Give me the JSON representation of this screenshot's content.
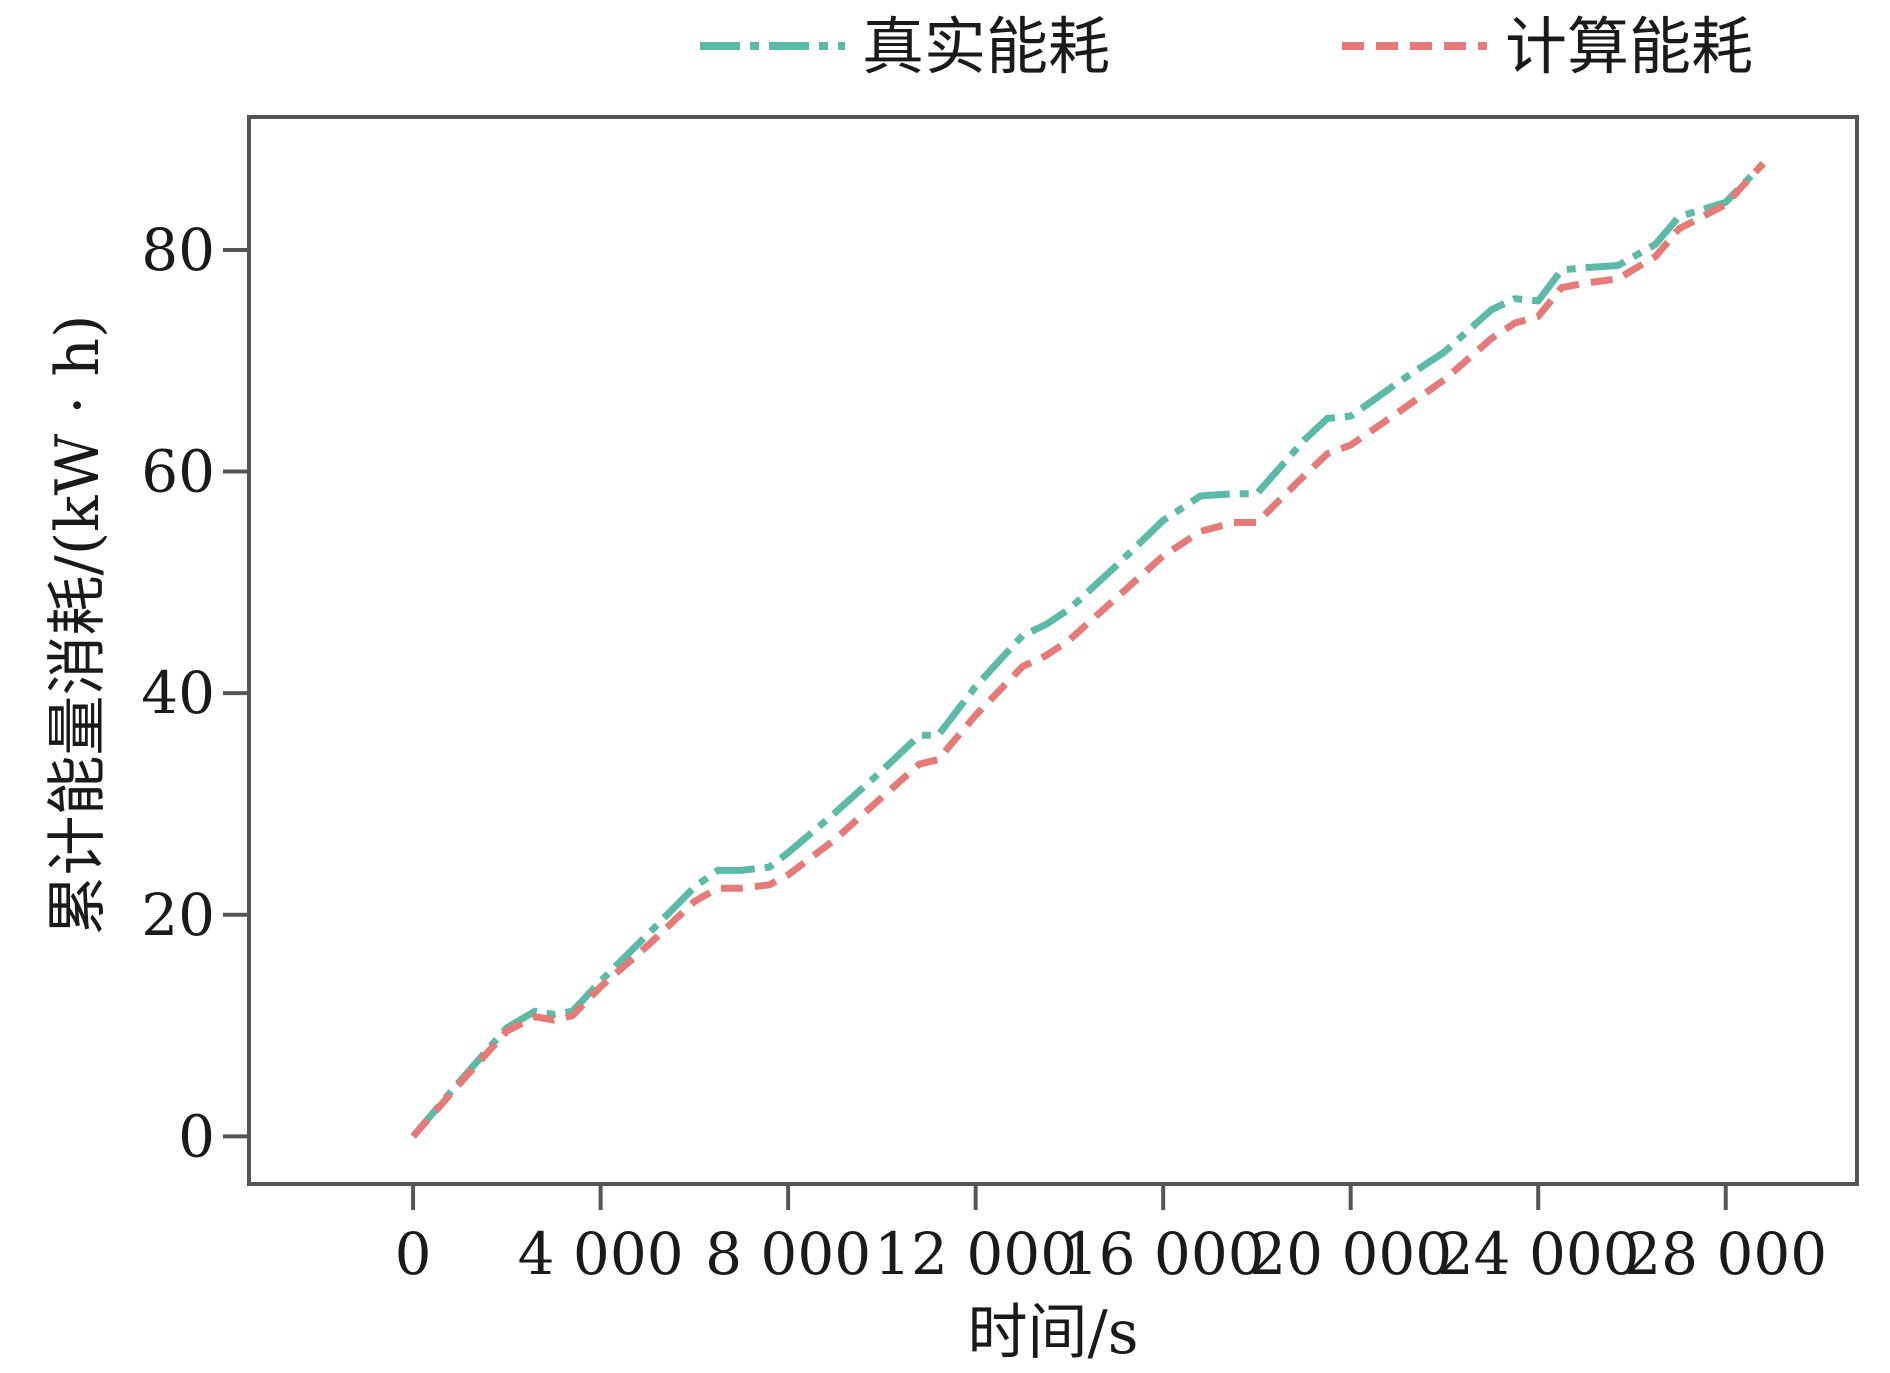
{
  "chart_data": {
    "type": "line",
    "title": "",
    "xlabel": "时间/s",
    "ylabel": "累计能量消耗/(kW · h)",
    "xlim": [
      -3500,
      30800
    ],
    "ylim": [
      -4.3,
      92
    ],
    "xticks": [
      0,
      4000,
      8000,
      12000,
      16000,
      20000,
      24000,
      28000
    ],
    "xtick_labels": [
      "0",
      "4 000",
      "8 000",
      "12 000",
      "16 000",
      "20 000",
      "24 000",
      "28 000"
    ],
    "yticks": [
      0,
      20,
      40,
      60,
      80
    ],
    "ytick_labels": [
      "0",
      "20",
      "40",
      "60",
      "80"
    ],
    "grid": false,
    "legend_position": "top",
    "series": [
      {
        "name": "真实能耗",
        "color": "#5bbaa8",
        "dash": "dashdot",
        "x": [
          0,
          1000,
          2000,
          2600,
          3000,
          3400,
          4000,
          5000,
          6000,
          6500,
          7000,
          7600,
          8000,
          9000,
          10000,
          10800,
          11200,
          12000,
          13000,
          13500,
          14000,
          15000,
          16000,
          16800,
          17500,
          18000,
          19000,
          19500,
          20000,
          21000,
          22000,
          23000,
          23500,
          24000,
          24500,
          25000,
          25700,
          26500,
          27000,
          28000,
          28800
        ],
        "y": [
          0,
          5,
          9.8,
          11.3,
          11,
          11.3,
          14,
          18.2,
          22.5,
          24,
          24,
          24.3,
          25.6,
          29.2,
          33,
          36.2,
          36.2,
          40.6,
          45.2,
          46.2,
          47.6,
          51.5,
          55.6,
          57.8,
          58,
          58,
          62.8,
          64.8,
          65,
          68,
          70.8,
          74.6,
          75.6,
          75.4,
          78.2,
          78.4,
          78.6,
          80.5,
          83,
          84.3,
          87.8
        ]
      },
      {
        "name": "计算能耗",
        "color": "#e57a78",
        "dash": "dashed",
        "x": [
          0,
          1000,
          2000,
          2600,
          3000,
          3400,
          4000,
          5000,
          6000,
          6500,
          7000,
          7600,
          8000,
          9000,
          10000,
          10800,
          11200,
          12000,
          13000,
          13500,
          14000,
          15000,
          16000,
          16800,
          17500,
          18000,
          19000,
          19500,
          20000,
          21000,
          22000,
          23000,
          23500,
          24000,
          24500,
          25000,
          25700,
          26500,
          27000,
          28000,
          28800
        ],
        "y": [
          0,
          4.8,
          9.5,
          10.8,
          10.5,
          10.9,
          13.5,
          17.2,
          21.2,
          22.4,
          22.4,
          22.7,
          23.6,
          26.8,
          30.6,
          33.6,
          34,
          38,
          42.4,
          43.4,
          44.8,
          48.6,
          52.4,
          54.6,
          55.4,
          55.4,
          59.6,
          61.6,
          62.4,
          65.3,
          68.3,
          72,
          73.4,
          74,
          76.6,
          77,
          77.4,
          79.4,
          81.9,
          84.1,
          87.8
        ]
      }
    ]
  }
}
